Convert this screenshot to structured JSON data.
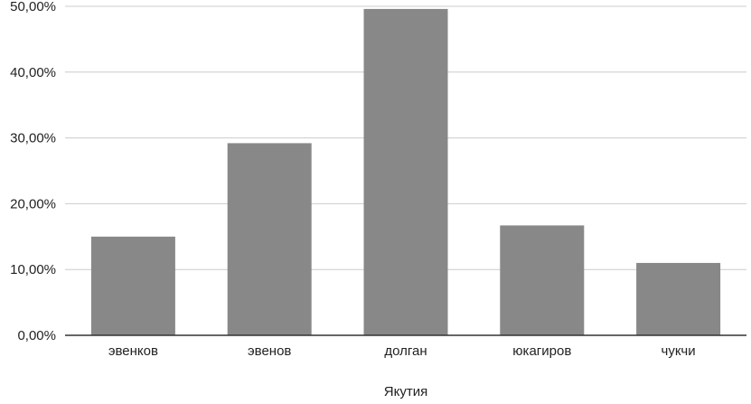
{
  "chart_data": {
    "type": "bar",
    "title": "",
    "xlabel": "Якутия",
    "ylabel": "",
    "categories": [
      "эвенков",
      "эвенов",
      "долган",
      "юкагиров",
      "чукчи"
    ],
    "values": [
      15.0,
      29.2,
      49.6,
      16.7,
      11.0
    ],
    "ylim": [
      0,
      50
    ],
    "yticks": [
      0,
      10,
      20,
      30,
      40,
      50
    ],
    "ytick_labels": [
      "0,00%",
      "10,00%",
      "20,00%",
      "30,00%",
      "40,00%",
      "50,00%"
    ],
    "grid": true,
    "legend": "none",
    "colors": {
      "bar": "#888888",
      "grid": "#cccccc",
      "axis": "#333333"
    }
  }
}
